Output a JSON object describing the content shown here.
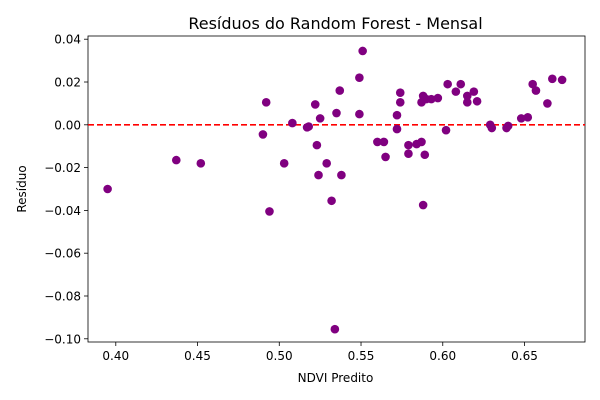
{
  "chart_data": {
    "type": "scatter",
    "title": "Resíduos do Random Forest - Mensal",
    "xlabel": "NDVI Predito",
    "ylabel": "Resíduo",
    "xlim": [
      0.383,
      0.687
    ],
    "ylim": [
      -0.1015,
      0.0415
    ],
    "x_ticks": [
      0.4,
      0.45,
      0.5,
      0.55,
      0.6,
      0.65
    ],
    "x_tick_labels": [
      "0.40",
      "0.45",
      "0.50",
      "0.55",
      "0.60",
      "0.65"
    ],
    "y_ticks": [
      0.04,
      0.02,
      0.0,
      -0.02,
      -0.04,
      -0.06,
      -0.08,
      -0.1
    ],
    "y_tick_labels": [
      "0.04",
      "0.02",
      "0.00",
      "−0.02",
      "−0.04",
      "−0.06",
      "−0.08",
      "−0.10"
    ],
    "grid": false,
    "reference_line": {
      "y": 0.0,
      "color": "#ff0000",
      "style": "dashed"
    },
    "point_color": "#800080",
    "points": [
      {
        "x": 0.395,
        "y": -0.03
      },
      {
        "x": 0.437,
        "y": -0.0165
      },
      {
        "x": 0.452,
        "y": -0.018
      },
      {
        "x": 0.49,
        "y": -0.0045
      },
      {
        "x": 0.492,
        "y": 0.0105
      },
      {
        "x": 0.494,
        "y": -0.0405
      },
      {
        "x": 0.503,
        "y": -0.018
      },
      {
        "x": 0.508,
        "y": 0.0008
      },
      {
        "x": 0.517,
        "y": -0.0012
      },
      {
        "x": 0.518,
        "y": -0.0008
      },
      {
        "x": 0.522,
        "y": 0.0095
      },
      {
        "x": 0.523,
        "y": -0.0095
      },
      {
        "x": 0.524,
        "y": -0.0235
      },
      {
        "x": 0.525,
        "y": 0.003
      },
      {
        "x": 0.529,
        "y": -0.018
      },
      {
        "x": 0.532,
        "y": -0.0355
      },
      {
        "x": 0.534,
        "y": -0.0955
      },
      {
        "x": 0.535,
        "y": 0.0055
      },
      {
        "x": 0.537,
        "y": 0.016
      },
      {
        "x": 0.538,
        "y": -0.0235
      },
      {
        "x": 0.549,
        "y": 0.005
      },
      {
        "x": 0.549,
        "y": 0.022
      },
      {
        "x": 0.551,
        "y": 0.0345
      },
      {
        "x": 0.56,
        "y": -0.008
      },
      {
        "x": 0.564,
        "y": -0.008
      },
      {
        "x": 0.565,
        "y": -0.015
      },
      {
        "x": 0.572,
        "y": 0.0045
      },
      {
        "x": 0.572,
        "y": -0.002
      },
      {
        "x": 0.574,
        "y": 0.015
      },
      {
        "x": 0.574,
        "y": 0.0105
      },
      {
        "x": 0.579,
        "y": -0.0095
      },
      {
        "x": 0.579,
        "y": -0.0135
      },
      {
        "x": 0.584,
        "y": -0.009
      },
      {
        "x": 0.587,
        "y": -0.008
      },
      {
        "x": 0.587,
        "y": 0.0105
      },
      {
        "x": 0.588,
        "y": 0.0135
      },
      {
        "x": 0.588,
        "y": -0.0375
      },
      {
        "x": 0.589,
        "y": -0.014
      },
      {
        "x": 0.59,
        "y": 0.012
      },
      {
        "x": 0.593,
        "y": 0.012
      },
      {
        "x": 0.597,
        "y": 0.0125
      },
      {
        "x": 0.602,
        "y": -0.0025
      },
      {
        "x": 0.603,
        "y": 0.019
      },
      {
        "x": 0.608,
        "y": 0.0155
      },
      {
        "x": 0.611,
        "y": 0.019
      },
      {
        "x": 0.615,
        "y": 0.0135
      },
      {
        "x": 0.615,
        "y": 0.0105
      },
      {
        "x": 0.619,
        "y": 0.0155
      },
      {
        "x": 0.621,
        "y": 0.011
      },
      {
        "x": 0.629,
        "y": 0.0
      },
      {
        "x": 0.63,
        "y": -0.0015
      },
      {
        "x": 0.639,
        "y": -0.0015
      },
      {
        "x": 0.64,
        "y": -0.0005
      },
      {
        "x": 0.648,
        "y": 0.003
      },
      {
        "x": 0.652,
        "y": 0.0035
      },
      {
        "x": 0.655,
        "y": 0.019
      },
      {
        "x": 0.657,
        "y": 0.016
      },
      {
        "x": 0.664,
        "y": 0.01
      },
      {
        "x": 0.667,
        "y": 0.0215
      },
      {
        "x": 0.673,
        "y": 0.021
      }
    ]
  }
}
